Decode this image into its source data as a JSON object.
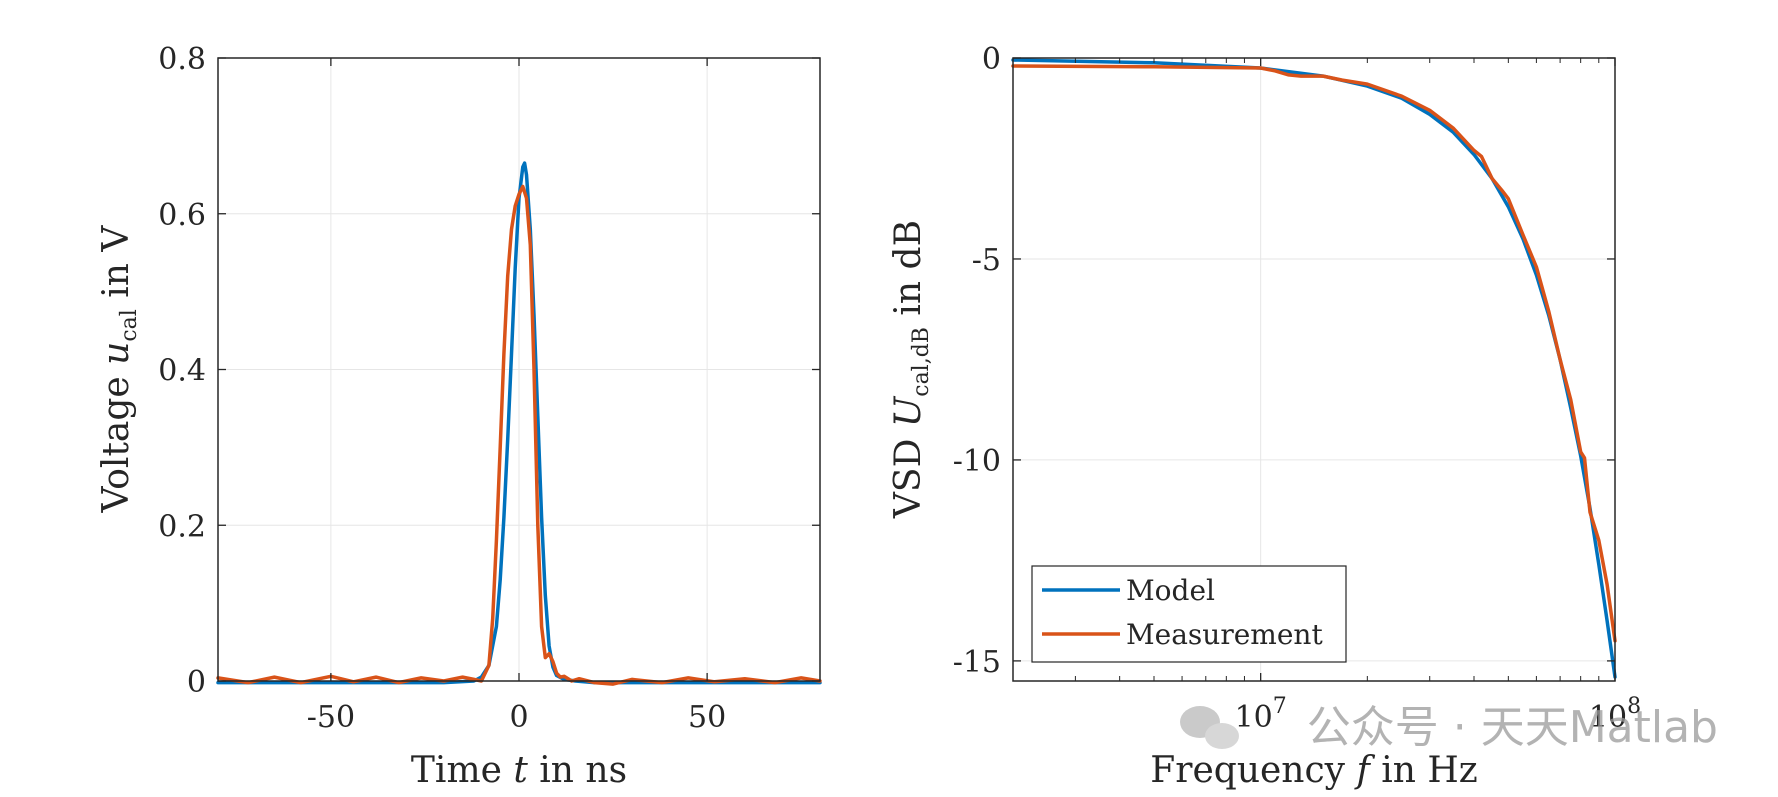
{
  "chart_data": [
    {
      "type": "line",
      "xlabel": "Time t in ns",
      "xlabel_parts": [
        "Time ",
        "t",
        " in ns"
      ],
      "ylabel": "Voltage u_cal in V",
      "ylabel_parts": [
        "Voltage ",
        "u",
        "cal",
        " in V"
      ],
      "xlim": [
        -80,
        80
      ],
      "ylim": [
        0,
        0.8
      ],
      "xticks": [
        -50,
        0,
        50
      ],
      "xtick_labels": [
        "-50",
        "0",
        "50"
      ],
      "yticks": [
        0,
        0.2,
        0.4,
        0.6,
        0.8
      ],
      "ytick_labels": [
        "0",
        "0.2",
        "0.4",
        "0.6",
        "0.8"
      ],
      "grid": true,
      "series": [
        {
          "name": "Model",
          "color": "#0072BD",
          "x": [
            -80,
            -20,
            -12,
            -10,
            -8,
            -6,
            -5,
            -4,
            -3,
            -2,
            -1,
            0,
            1,
            1.5,
            2,
            3,
            4,
            5,
            6,
            7,
            8,
            9,
            10,
            12,
            15,
            20,
            80
          ],
          "y": [
            -0.002,
            -0.002,
            0.0,
            0.005,
            0.02,
            0.07,
            0.13,
            0.21,
            0.31,
            0.42,
            0.53,
            0.62,
            0.66,
            0.665,
            0.65,
            0.58,
            0.47,
            0.34,
            0.21,
            0.11,
            0.045,
            0.018,
            0.007,
            0.002,
            0.0,
            -0.002,
            -0.002
          ]
        },
        {
          "name": "Measurement",
          "color": "#D95319",
          "x": [
            -80,
            -72,
            -65,
            -58,
            -50,
            -44,
            -38,
            -32,
            -26,
            -20,
            -15,
            -12,
            -10,
            -8,
            -7,
            -6,
            -5,
            -4,
            -3,
            -2,
            -1,
            0,
            1,
            2,
            3,
            4,
            5,
            6,
            7,
            8,
            9,
            10,
            11,
            12,
            14,
            16,
            20,
            25,
            30,
            38,
            45,
            52,
            60,
            68,
            75,
            80
          ],
          "y": [
            0.004,
            -0.002,
            0.005,
            -0.002,
            0.006,
            -0.001,
            0.005,
            -0.002,
            0.004,
            0.0,
            0.005,
            0.002,
            0.0,
            0.02,
            0.08,
            0.18,
            0.3,
            0.42,
            0.52,
            0.58,
            0.61,
            0.625,
            0.635,
            0.62,
            0.56,
            0.4,
            0.2,
            0.07,
            0.03,
            0.035,
            0.025,
            0.01,
            0.005,
            0.006,
            0.0,
            0.003,
            -0.002,
            -0.004,
            0.002,
            -0.002,
            0.004,
            -0.001,
            0.003,
            -0.002,
            0.004,
            0.0
          ]
        }
      ]
    },
    {
      "type": "line",
      "xscale": "log",
      "xlabel": "Frequency f in Hz",
      "xlabel_parts": [
        "Frequency ",
        "f",
        " in Hz"
      ],
      "ylabel": "VSD U_cal,dB in dB",
      "ylabel_parts": [
        "VSD ",
        "U",
        "cal,dB",
        " in dB"
      ],
      "xlim": [
        2000000,
        100000000
      ],
      "ylim": [
        -15.5,
        0
      ],
      "xticks": [
        10000000,
        100000000
      ],
      "xtick_labels": [
        "10",
        "10"
      ],
      "xtick_exponents": [
        "7",
        "8"
      ],
      "yticks": [
        -15,
        -10,
        -5,
        0
      ],
      "ytick_labels": [
        "-15",
        "-10",
        "-5",
        "0"
      ],
      "grid": true,
      "legend": {
        "location": "bottom-left",
        "entries": [
          "Model",
          "Measurement"
        ]
      },
      "series": [
        {
          "name": "Model",
          "color": "#0072BD",
          "x": [
            2000000,
            5000000,
            10000000,
            15000000,
            20000000,
            25000000,
            30000000,
            35000000,
            40000000,
            45000000,
            50000000,
            55000000,
            60000000,
            65000000,
            70000000,
            75000000,
            80000000,
            85000000,
            90000000,
            95000000,
            100000000
          ],
          "y": [
            -0.05,
            -0.12,
            -0.25,
            -0.45,
            -0.7,
            -1.0,
            -1.4,
            -1.85,
            -2.4,
            -3.0,
            -3.7,
            -4.5,
            -5.4,
            -6.4,
            -7.5,
            -8.7,
            -9.9,
            -11.2,
            -12.6,
            -14.0,
            -15.4
          ]
        },
        {
          "name": "Measurement",
          "color": "#D95319",
          "x": [
            2000000,
            5000000,
            10000000,
            11000000,
            12000000,
            13000000,
            15000000,
            17000000,
            20000000,
            25000000,
            30000000,
            35000000,
            40000000,
            42000000,
            45000000,
            48000000,
            50000000,
            55000000,
            60000000,
            65000000,
            70000000,
            75000000,
            80000000,
            82000000,
            85000000,
            90000000,
            95000000,
            100000000
          ],
          "y": [
            -0.2,
            -0.22,
            -0.25,
            -0.32,
            -0.42,
            -0.45,
            -0.45,
            -0.55,
            -0.65,
            -0.95,
            -1.3,
            -1.75,
            -2.3,
            -2.45,
            -3.0,
            -3.3,
            -3.5,
            -4.4,
            -5.2,
            -6.3,
            -7.5,
            -8.5,
            -9.8,
            -9.95,
            -11.3,
            -12.0,
            -13.1,
            -14.5
          ]
        }
      ]
    }
  ],
  "watermark": "公众号 · 天天Matlab"
}
